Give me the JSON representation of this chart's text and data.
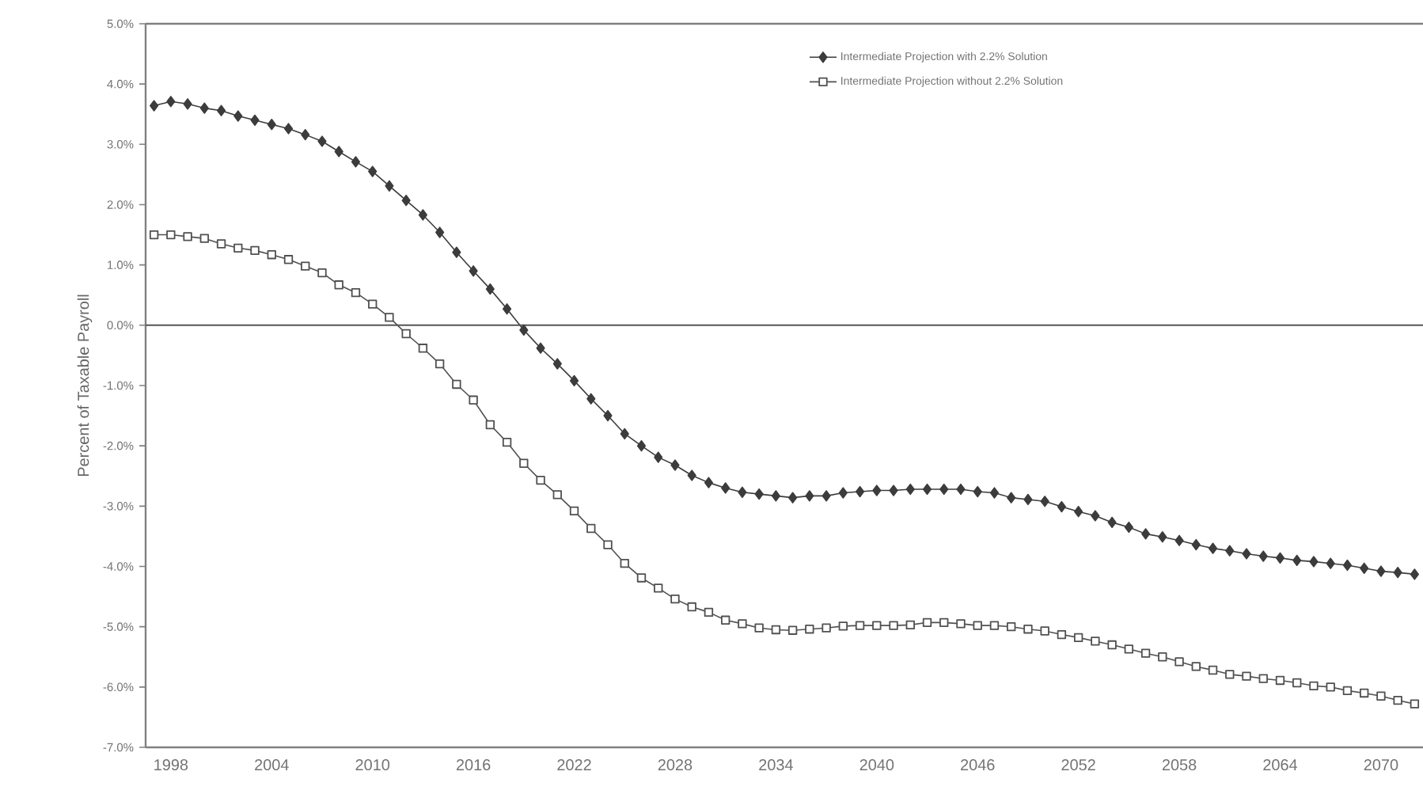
{
  "chart_data": {
    "type": "line",
    "ylabel": "Percent of Taxable Payroll",
    "x": [
      1997,
      1998,
      1999,
      2000,
      2001,
      2002,
      2003,
      2004,
      2005,
      2006,
      2007,
      2008,
      2009,
      2010,
      2011,
      2012,
      2013,
      2014,
      2015,
      2016,
      2017,
      2018,
      2019,
      2020,
      2021,
      2022,
      2023,
      2024,
      2025,
      2026,
      2027,
      2028,
      2029,
      2030,
      2031,
      2032,
      2033,
      2034,
      2035,
      2036,
      2037,
      2038,
      2039,
      2040,
      2041,
      2042,
      2043,
      2044,
      2045,
      2046,
      2047,
      2048,
      2049,
      2050,
      2051,
      2052,
      2053,
      2054,
      2055,
      2056,
      2057,
      2058,
      2059,
      2060,
      2061,
      2062,
      2063,
      2064,
      2065,
      2066,
      2067,
      2068,
      2069,
      2070,
      2071,
      2072
    ],
    "series": [
      {
        "name": "Intermediate Projection with 2.2% Solution",
        "color": "#3c3c3c",
        "marker": "diamond",
        "values": [
          3.64,
          3.71,
          3.67,
          3.6,
          3.56,
          3.47,
          3.4,
          3.33,
          3.26,
          3.16,
          3.05,
          2.88,
          2.71,
          2.55,
          2.31,
          2.07,
          1.83,
          1.54,
          1.21,
          0.9,
          0.6,
          0.27,
          -0.08,
          -0.38,
          -0.64,
          -0.92,
          -1.22,
          -1.5,
          -1.8,
          -2.0,
          -2.19,
          -2.32,
          -2.49,
          -2.61,
          -2.7,
          -2.77,
          -2.8,
          -2.83,
          -2.86,
          -2.83,
          -2.83,
          -2.78,
          -2.76,
          -2.74,
          -2.74,
          -2.72,
          -2.72,
          -2.72,
          -2.72,
          -2.76,
          -2.78,
          -2.86,
          -2.89,
          -2.92,
          -3.01,
          -3.09,
          -3.16,
          -3.27,
          -3.35,
          -3.46,
          -3.51,
          -3.57,
          -3.64,
          -3.7,
          -3.74,
          -3.79,
          -3.83,
          -3.86,
          -3.9,
          -3.92,
          -3.95,
          -3.98,
          -4.03,
          -4.08,
          -4.1,
          -4.13
        ]
      },
      {
        "name": "Intermediate Projection without 2.2% Solution",
        "color": "#505050",
        "marker": "square",
        "values": [
          1.5,
          1.5,
          1.47,
          1.44,
          1.35,
          1.28,
          1.24,
          1.17,
          1.09,
          0.98,
          0.87,
          0.67,
          0.54,
          0.35,
          0.13,
          -0.14,
          -0.38,
          -0.64,
          -0.98,
          -1.24,
          -1.65,
          -1.94,
          -2.29,
          -2.57,
          -2.81,
          -3.08,
          -3.37,
          -3.64,
          -3.95,
          -4.19,
          -4.36,
          -4.54,
          -4.67,
          -4.76,
          -4.89,
          -4.95,
          -5.02,
          -5.05,
          -5.06,
          -5.04,
          -5.02,
          -4.99,
          -4.98,
          -4.98,
          -4.98,
          -4.97,
          -4.93,
          -4.93,
          -4.95,
          -4.98,
          -4.98,
          -5.0,
          -5.04,
          -5.07,
          -5.13,
          -5.18,
          -5.24,
          -5.3,
          -5.37,
          -5.44,
          -5.5,
          -5.58,
          -5.66,
          -5.72,
          -5.79,
          -5.82,
          -5.86,
          -5.89,
          -5.93,
          -5.98,
          -6.0,
          -6.06,
          -6.1,
          -6.15,
          -6.22,
          -6.28
        ]
      }
    ],
    "xlim": [
      1996.5,
      2072.5
    ],
    "xticks": [
      1998,
      2004,
      2010,
      2016,
      2022,
      2028,
      2034,
      2040,
      2046,
      2052,
      2058,
      2064,
      2070
    ],
    "ylim": [
      -7,
      5
    ],
    "yticks": [
      {
        "value": -7,
        "label": "-7.0%"
      },
      {
        "value": -6,
        "label": "-6.0%"
      },
      {
        "value": -5,
        "label": "-5.0%"
      },
      {
        "value": -4,
        "label": "-4.0%"
      },
      {
        "value": -3,
        "label": "-3.0%"
      },
      {
        "value": -2,
        "label": "-2.0%"
      },
      {
        "value": -1,
        "label": "-1.0%"
      },
      {
        "value": 0,
        "label": "0.0%"
      },
      {
        "value": 1,
        "label": "1.0%"
      },
      {
        "value": 2,
        "label": "2.0%"
      },
      {
        "value": 3,
        "label": "3.0%"
      },
      {
        "value": 4,
        "label": "4.0%"
      },
      {
        "value": 5,
        "label": "5.0%"
      }
    ],
    "ref_lines": [
      {
        "axis": "y",
        "value": 0,
        "color": "#555555"
      }
    ],
    "legend": "top",
    "grid": false
  }
}
